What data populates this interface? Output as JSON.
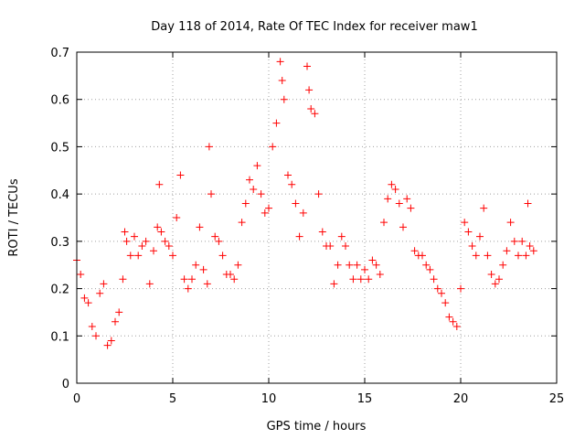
{
  "chart_data": {
    "type": "scatter",
    "title": "Day 118 of 2014, Rate Of TEC Index for receiver maw1",
    "xlabel": "GPS time / hours",
    "ylabel": "ROTI / TECUs",
    "xlim": [
      0,
      25
    ],
    "ylim": [
      0,
      0.7
    ],
    "xticks": [
      "0",
      "5",
      "10",
      "15",
      "20",
      "25"
    ],
    "yticks": [
      "0",
      "0.1",
      "0.2",
      "0.3",
      "0.4",
      "0.5",
      "0.6",
      "0.7"
    ],
    "grid": true,
    "marker": "+",
    "series_color": "#ff0000",
    "series": [
      {
        "x": [
          0.0,
          0.2,
          0.4,
          0.6,
          0.8,
          1.0,
          1.2,
          1.4,
          1.6,
          1.8,
          2.0,
          2.2,
          2.4,
          2.5,
          2.6,
          2.8,
          3.0,
          3.2,
          3.4,
          3.6,
          3.8,
          4.0,
          4.2,
          4.3,
          4.4,
          4.6,
          4.8,
          5.0,
          5.2,
          5.4,
          5.6,
          5.8,
          6.0,
          6.2,
          6.4,
          6.6,
          6.8,
          6.9,
          7.0,
          7.2,
          7.4,
          7.6,
          7.8,
          8.0,
          8.2,
          8.4,
          8.6,
          8.8,
          9.0,
          9.2,
          9.4,
          9.6,
          9.8,
          10.0,
          10.2,
          10.4,
          10.6,
          10.7,
          10.8,
          11.0,
          11.2,
          11.4,
          11.6,
          11.8,
          12.0,
          12.1,
          12.2,
          12.4,
          12.6,
          12.8,
          13.0,
          13.2,
          13.4,
          13.6,
          13.8,
          14.0,
          14.2,
          14.4,
          14.6,
          14.8,
          15.0,
          15.2,
          15.4,
          15.6,
          15.8,
          16.0,
          16.2,
          16.4,
          16.6,
          16.8,
          17.0,
          17.2,
          17.4,
          17.6,
          17.8,
          18.0,
          18.2,
          18.4,
          18.6,
          18.8,
          19.0,
          19.2,
          19.4,
          19.6,
          19.8,
          20.0,
          20.2,
          20.4,
          20.6,
          20.8,
          21.0,
          21.2,
          21.4,
          21.6,
          21.8,
          22.0,
          22.2,
          22.4,
          22.6,
          22.8,
          23.0,
          23.2,
          23.4,
          23.5,
          23.6,
          23.8
        ],
        "y": [
          0.26,
          0.23,
          0.18,
          0.17,
          0.12,
          0.1,
          0.19,
          0.21,
          0.08,
          0.09,
          0.13,
          0.15,
          0.22,
          0.32,
          0.3,
          0.27,
          0.31,
          0.27,
          0.29,
          0.3,
          0.21,
          0.28,
          0.33,
          0.42,
          0.32,
          0.3,
          0.29,
          0.27,
          0.35,
          0.44,
          0.22,
          0.2,
          0.22,
          0.25,
          0.33,
          0.24,
          0.21,
          0.5,
          0.4,
          0.31,
          0.3,
          0.27,
          0.23,
          0.23,
          0.22,
          0.25,
          0.34,
          0.38,
          0.43,
          0.41,
          0.46,
          0.4,
          0.36,
          0.37,
          0.5,
          0.55,
          0.68,
          0.64,
          0.6,
          0.44,
          0.42,
          0.38,
          0.31,
          0.36,
          0.67,
          0.62,
          0.58,
          0.57,
          0.4,
          0.32,
          0.29,
          0.29,
          0.21,
          0.25,
          0.31,
          0.29,
          0.25,
          0.22,
          0.25,
          0.22,
          0.24,
          0.22,
          0.26,
          0.25,
          0.23,
          0.34,
          0.39,
          0.42,
          0.41,
          0.38,
          0.33,
          0.39,
          0.37,
          0.28,
          0.27,
          0.27,
          0.25,
          0.24,
          0.22,
          0.2,
          0.19,
          0.17,
          0.14,
          0.13,
          0.12,
          0.2,
          0.34,
          0.32,
          0.29,
          0.27,
          0.31,
          0.37,
          0.27,
          0.23,
          0.21,
          0.22,
          0.25,
          0.28,
          0.34,
          0.3,
          0.27,
          0.3,
          0.27,
          0.38,
          0.29,
          0.28
        ]
      }
    ]
  }
}
